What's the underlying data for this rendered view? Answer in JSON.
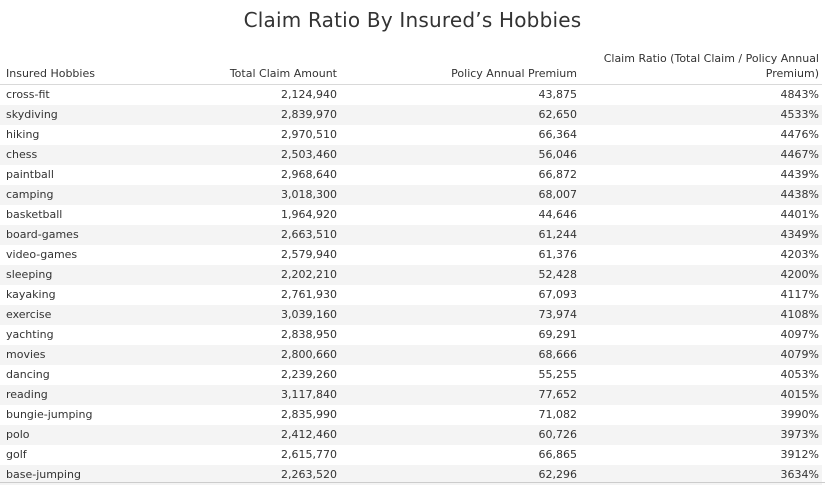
{
  "chart_data": {
    "type": "table",
    "title": "Claim Ratio By Insured’s Hobbies",
    "columns": [
      "Insured Hobbies",
      "Total Claim Amount",
      "Policy Annual Premium",
      "Claim Ratio (Total Claim / Policy Annual Premium)"
    ],
    "rows": [
      {
        "hobby": "cross-fit",
        "claim": "2,124,940",
        "premium": "43,875",
        "ratio": "4843%"
      },
      {
        "hobby": "skydiving",
        "claim": "2,839,970",
        "premium": "62,650",
        "ratio": "4533%"
      },
      {
        "hobby": "hiking",
        "claim": "2,970,510",
        "premium": "66,364",
        "ratio": "4476%"
      },
      {
        "hobby": "chess",
        "claim": "2,503,460",
        "premium": "56,046",
        "ratio": "4467%"
      },
      {
        "hobby": "paintball",
        "claim": "2,968,640",
        "premium": "66,872",
        "ratio": "4439%"
      },
      {
        "hobby": "camping",
        "claim": "3,018,300",
        "premium": "68,007",
        "ratio": "4438%"
      },
      {
        "hobby": "basketball",
        "claim": "1,964,920",
        "premium": "44,646",
        "ratio": "4401%"
      },
      {
        "hobby": "board-games",
        "claim": "2,663,510",
        "premium": "61,244",
        "ratio": "4349%"
      },
      {
        "hobby": "video-games",
        "claim": "2,579,940",
        "premium": "61,376",
        "ratio": "4203%"
      },
      {
        "hobby": "sleeping",
        "claim": "2,202,210",
        "premium": "52,428",
        "ratio": "4200%"
      },
      {
        "hobby": "kayaking",
        "claim": "2,761,930",
        "premium": "67,093",
        "ratio": "4117%"
      },
      {
        "hobby": "exercise",
        "claim": "3,039,160",
        "premium": "73,974",
        "ratio": "4108%"
      },
      {
        "hobby": "yachting",
        "claim": "2,838,950",
        "premium": "69,291",
        "ratio": "4097%"
      },
      {
        "hobby": "movies",
        "claim": "2,800,660",
        "premium": "68,666",
        "ratio": "4079%"
      },
      {
        "hobby": "dancing",
        "claim": "2,239,260",
        "premium": "55,255",
        "ratio": "4053%"
      },
      {
        "hobby": "reading",
        "claim": "3,117,840",
        "premium": "77,652",
        "ratio": "4015%"
      },
      {
        "hobby": "bungie-jumping",
        "claim": "2,835,990",
        "premium": "71,082",
        "ratio": "3990%"
      },
      {
        "hobby": "polo",
        "claim": "2,412,460",
        "premium": "60,726",
        "ratio": "3973%"
      },
      {
        "hobby": "golf",
        "claim": "2,615,770",
        "premium": "66,865",
        "ratio": "3912%"
      },
      {
        "hobby": "base-jumping",
        "claim": "2,263,520",
        "premium": "62,296",
        "ratio": "3634%"
      }
    ]
  }
}
